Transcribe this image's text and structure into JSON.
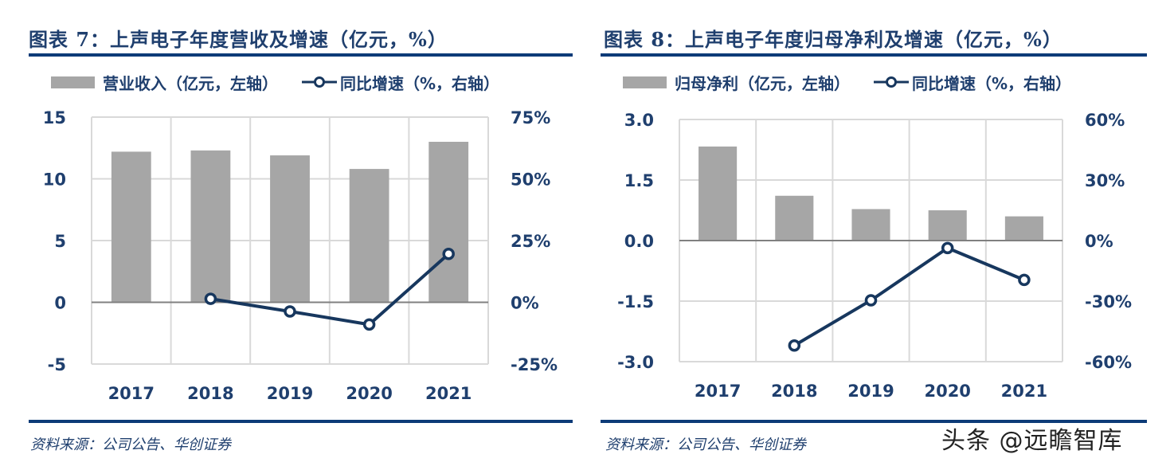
{
  "colors": {
    "title": "#1f3f6e",
    "rule": "#0d3b78",
    "bar": "#a6a6a6",
    "line": "#17375e",
    "grid": "#d9d9d9",
    "zero_line": "#808080"
  },
  "panels": [
    {
      "title": "图表 7：上声电子年度营收及增速（亿元，%）",
      "legend": {
        "bar_label": "营业收入（亿元，左轴）",
        "line_label": "同比增速（%，右轴）"
      },
      "source": "资料来源：公司公告、华创证券"
    },
    {
      "title": "图表 8：上声电子年度归母净利及增速（亿元，%）",
      "legend": {
        "bar_label": "归母净利（亿元，左轴）",
        "line_label": "同比增速（%，右轴）"
      },
      "source": "资料来源：公司公告、华创证券"
    }
  ],
  "watermark": "头条 @远瞻智库",
  "chart_data": [
    {
      "type": "bar+line",
      "title": "图表 7：上声电子年度营收及增速（亿元，%）",
      "categories": [
        "2017",
        "2018",
        "2019",
        "2020",
        "2021"
      ],
      "series": [
        {
          "name": "营业收入（亿元，左轴）",
          "type": "bar",
          "axis": "left",
          "values": [
            12.2,
            12.3,
            11.9,
            10.8,
            13.0
          ]
        },
        {
          "name": "同比增速（%，右轴）",
          "type": "line",
          "axis": "right",
          "values": [
            null,
            1.4,
            -3.7,
            -9.0,
            19.6
          ]
        }
      ],
      "ylim_left": [
        -5,
        15
      ],
      "yticks_left": [
        15,
        10,
        5,
        0,
        -5
      ],
      "ytick_labels_left": [
        "15",
        "10",
        "5",
        "0",
        "-5"
      ],
      "ylim_right": [
        -25,
        75
      ],
      "yticks_right": [
        75,
        50,
        25,
        0,
        -25
      ],
      "ytick_labels_right": [
        "75%",
        "50%",
        "25%",
        "0%",
        "-25%"
      ],
      "grid": true,
      "legend_position": "top"
    },
    {
      "type": "bar+line",
      "title": "图表 8：上声电子年度归母净利及增速（亿元，%）",
      "categories": [
        "2017",
        "2018",
        "2019",
        "2020",
        "2021"
      ],
      "series": [
        {
          "name": "归母净利（亿元，左轴）",
          "type": "bar",
          "axis": "left",
          "values": [
            2.33,
            1.11,
            0.78,
            0.75,
            0.6
          ]
        },
        {
          "name": "同比增速（%，右轴）",
          "type": "line",
          "axis": "right",
          "values": [
            null,
            -52.0,
            -29.6,
            -3.7,
            -19.5
          ]
        }
      ],
      "ylim_left": [
        -3,
        3
      ],
      "yticks_left": [
        3,
        1.5,
        0,
        -1.5,
        -3
      ],
      "ytick_labels_left": [
        "3.0",
        "1.5",
        "0.0",
        "-1.5",
        "-3.0"
      ],
      "ylim_right": [
        -60,
        60
      ],
      "yticks_right": [
        60,
        30,
        0,
        -30,
        -60
      ],
      "ytick_labels_right": [
        "60%",
        "30%",
        "0%",
        "-30%",
        "-60%"
      ],
      "grid": true,
      "legend_position": "top"
    }
  ]
}
